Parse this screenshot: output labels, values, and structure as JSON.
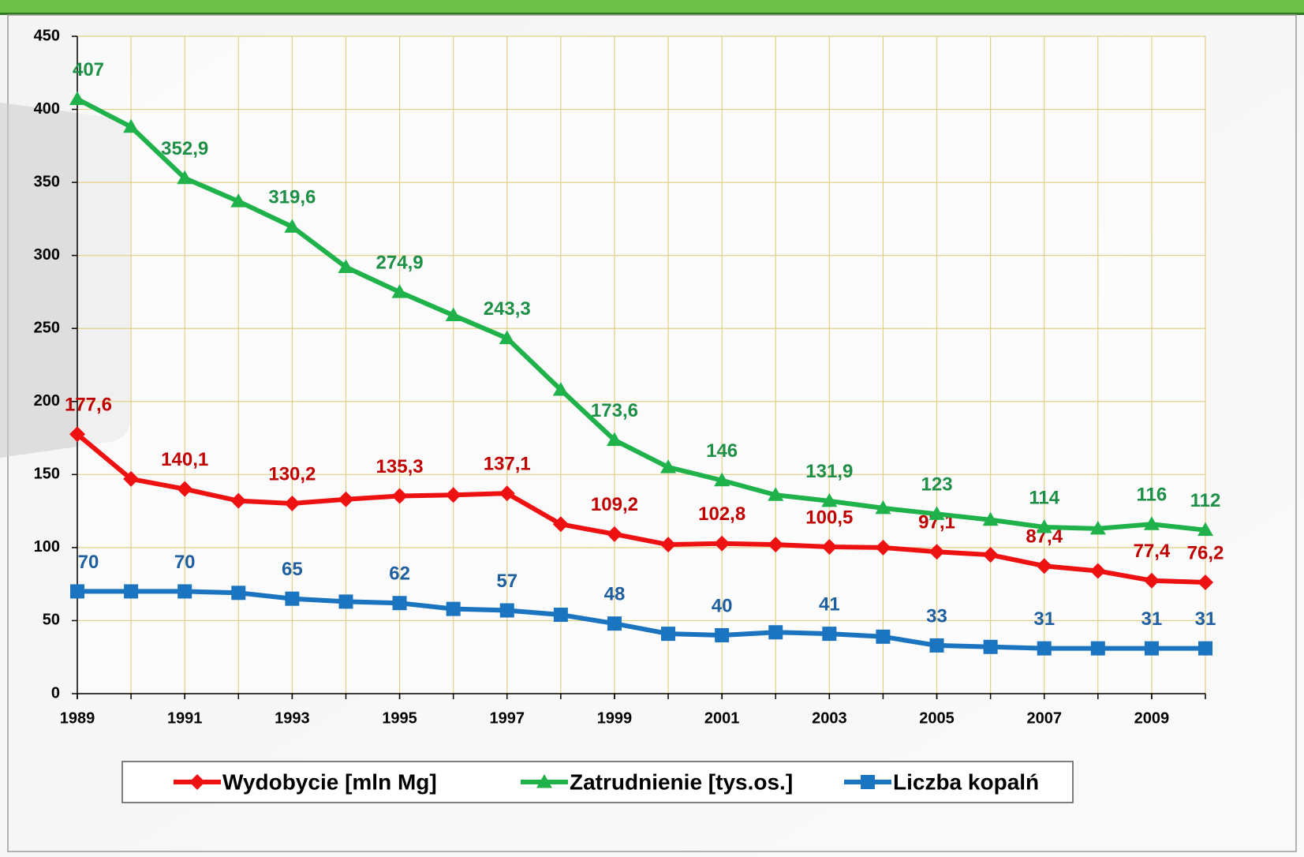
{
  "chart_data": {
    "type": "line",
    "x": [
      1989,
      1990,
      1991,
      1992,
      1993,
      1994,
      1995,
      1996,
      1997,
      1998,
      1999,
      2000,
      2001,
      2002,
      2003,
      2004,
      2005,
      2006,
      2007,
      2008,
      2009,
      2010
    ],
    "xlim": [
      1989,
      2010
    ],
    "xticks": [
      1989,
      1991,
      1993,
      1995,
      1997,
      1999,
      2001,
      2003,
      2005,
      2007,
      2009
    ],
    "ylim": [
      0,
      450
    ],
    "yticks": [
      0,
      50,
      100,
      150,
      200,
      250,
      300,
      350,
      400,
      450
    ],
    "grid": true,
    "legend": "bottom",
    "series": [
      {
        "name": "Wydobycie [mln Mg]",
        "color": "#ee1111",
        "label_color": "#c00000",
        "marker": "diamond",
        "values": [
          177.6,
          147,
          140.1,
          132,
          130.2,
          133,
          135.3,
          136,
          137.1,
          116,
          109.2,
          102,
          102.8,
          102,
          100.5,
          100,
          97.1,
          95,
          87.4,
          84,
          77.4,
          76.2
        ],
        "value_labels": [
          "177,6",
          null,
          "140,1",
          null,
          "130,2",
          null,
          "135,3",
          null,
          "137,1",
          null,
          "109,2",
          null,
          "102,8",
          null,
          "100,5",
          null,
          "97,1",
          null,
          "87,4",
          null,
          "77,4",
          "76,2"
        ]
      },
      {
        "name": "Zatrudnienie [tys.os.]",
        "color": "#1fb24a",
        "label_color": "#1e8f46",
        "marker": "triangle",
        "values": [
          407,
          388,
          352.9,
          337,
          319.6,
          292,
          274.9,
          259,
          243.3,
          208,
          173.6,
          155,
          146,
          136,
          131.9,
          127,
          123,
          119,
          114,
          113,
          116,
          112
        ],
        "value_labels": [
          "407",
          null,
          "352,9",
          null,
          "319,6",
          null,
          "274,9",
          null,
          "243,3",
          null,
          "173,6",
          null,
          "146",
          null,
          "131,9",
          null,
          "123",
          null,
          "114",
          null,
          "116",
          "112"
        ]
      },
      {
        "name": "Liczba kopalń",
        "color": "#1a74c0",
        "label_color": "#1f5f9f",
        "marker": "square",
        "values": [
          70,
          70,
          70,
          69,
          65,
          63,
          62,
          58,
          57,
          54,
          48,
          41,
          40,
          42,
          41,
          39,
          33,
          32,
          31,
          31,
          31,
          31
        ],
        "value_labels": [
          "70",
          null,
          "70",
          null,
          "65",
          null,
          "62",
          null,
          "57",
          null,
          "48",
          null,
          "40",
          null,
          "41",
          null,
          "33",
          null,
          "31",
          null,
          "31",
          "31"
        ]
      }
    ]
  }
}
